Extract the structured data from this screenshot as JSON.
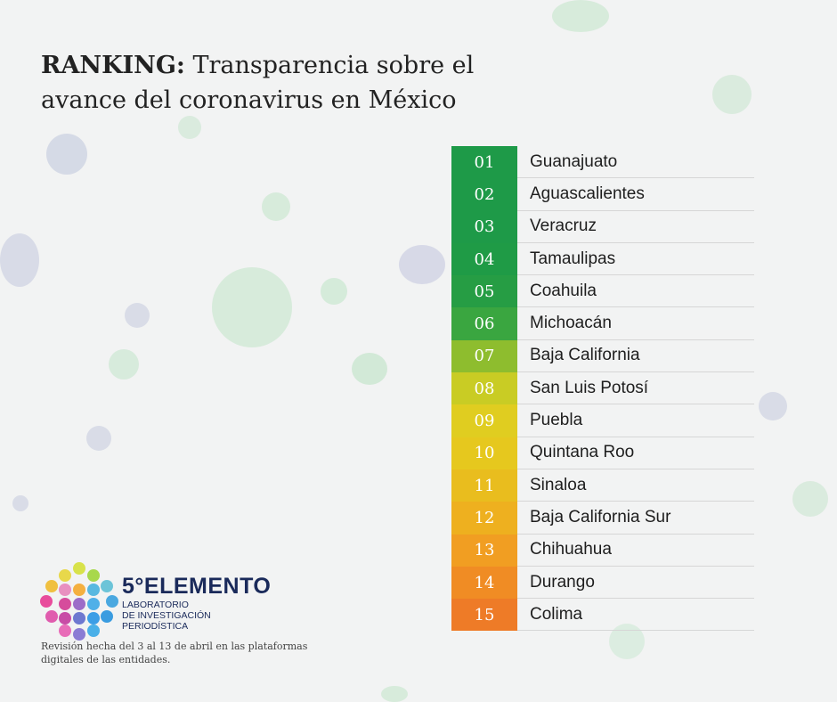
{
  "title": {
    "bold": "RANKING:",
    "rest": " Transparencia sobre el avance del coronavirus en México"
  },
  "ranking": [
    {
      "num": "01",
      "state": "Guanajuato",
      "color": "#1e9a48"
    },
    {
      "num": "02",
      "state": "Aguascalientes",
      "color": "#1e9a48"
    },
    {
      "num": "03",
      "state": "Veracruz",
      "color": "#1e9a48"
    },
    {
      "num": "04",
      "state": "Tamaulipas",
      "color": "#1f9b46"
    },
    {
      "num": "05",
      "state": "Coahuila",
      "color": "#269d44"
    },
    {
      "num": "06",
      "state": "Michoacán",
      "color": "#3aa640"
    },
    {
      "num": "07",
      "state": "Baja California",
      "color": "#8ebd2e"
    },
    {
      "num": "08",
      "state": "San Luis Potosí",
      "color": "#c9cc24"
    },
    {
      "num": "09",
      "state": "Puebla",
      "color": "#e0cd20"
    },
    {
      "num": "10",
      "state": "Quintana Roo",
      "color": "#e6c81e"
    },
    {
      "num": "11",
      "state": "Sinaloa",
      "color": "#e9bd1e"
    },
    {
      "num": "12",
      "state": "Baja California Sur",
      "color": "#eeb01f"
    },
    {
      "num": "13",
      "state": "Chihuahua",
      "color": "#f19e22"
    },
    {
      "num": "14",
      "state": "Durango",
      "color": "#f08c24"
    },
    {
      "num": "15",
      "state": "Colima",
      "color": "#ee7b27"
    }
  ],
  "brand": {
    "name": "5°ELEMENTO",
    "sub1": "LABORATORIO",
    "sub2": "DE INVESTIGACIÓN",
    "sub3": "PERIODÍSTICA"
  },
  "note": "Revisión hecha del 3 al 13 de abril en las plataformas digitales de las entidades."
}
